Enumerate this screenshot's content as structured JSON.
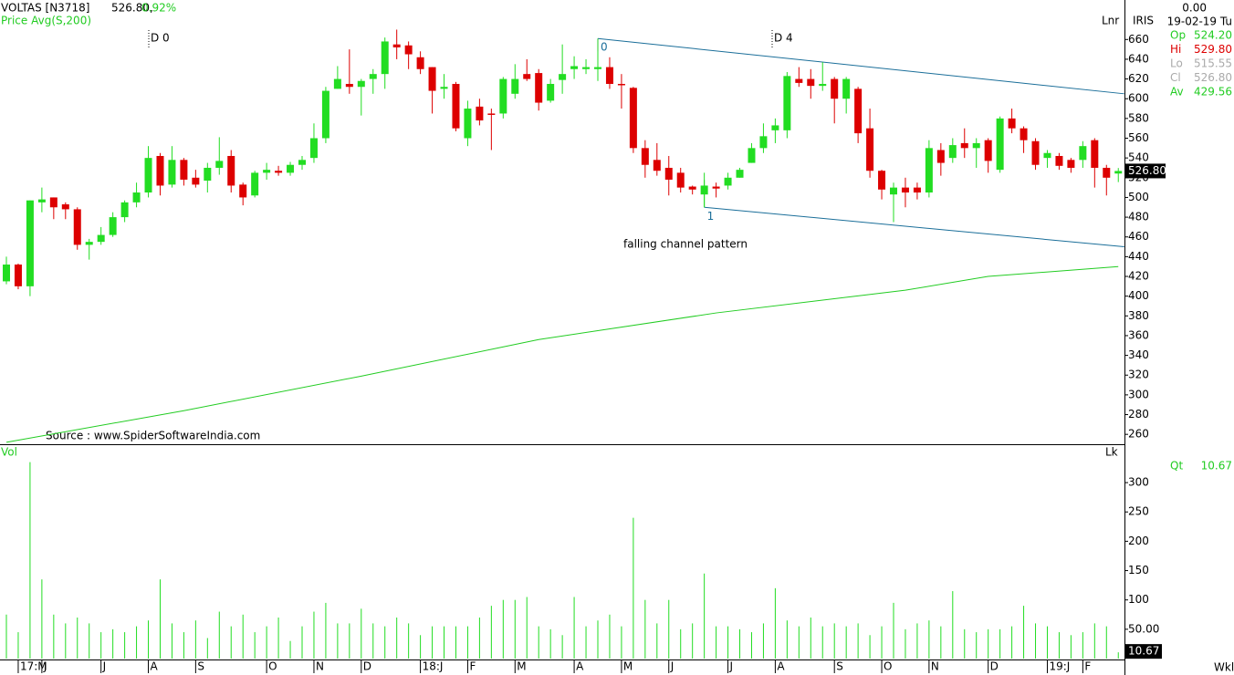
{
  "header": {
    "symbol": "VOLTAS [N3718]",
    "last": "526.80,",
    "change": "0.92%",
    "indicator": "Price  Avg(S,200)",
    "d0": "D 0",
    "d4": "D 4",
    "scale": "Lnr",
    "brand": "IRIS",
    "vol_title": "Vol",
    "vol_unit": "Lk",
    "period": "Wkl",
    "source": "Source : www.SpiderSoftwareIndia.com",
    "annotation": "falling channel pattern"
  },
  "info": {
    "top": "0.00",
    "date": "19-02-19 Tu",
    "rows": [
      {
        "label": "Op",
        "value": "524.20"
      },
      {
        "label": "Hi",
        "value": "529.80"
      },
      {
        "label": "Lo",
        "value": "515.55"
      },
      {
        "label": "Cl",
        "value": "526.80"
      },
      {
        "label": "Av",
        "value": "429.56"
      }
    ],
    "qt_label": "Qt",
    "qt_value": "10.67"
  },
  "price_box": "526.80",
  "chart_data": [
    {
      "type": "candlestick",
      "ylim": [
        250,
        700
      ],
      "yticks": [
        260,
        280,
        300,
        320,
        340,
        360,
        380,
        400,
        420,
        440,
        460,
        480,
        500,
        520,
        540,
        560,
        580,
        600,
        620,
        640,
        660
      ],
      "xticks": [
        {
          "value": 1,
          "label": "17:M"
        },
        {
          "value": 3,
          "label": "J"
        },
        {
          "value": 8,
          "label": "J"
        },
        {
          "value": 12,
          "label": "A"
        },
        {
          "value": 16,
          "label": "S"
        },
        {
          "value": 22,
          "label": "O"
        },
        {
          "value": 26,
          "label": "N"
        },
        {
          "value": 30,
          "label": "D"
        },
        {
          "value": 35,
          "label": "18:J"
        },
        {
          "value": 39,
          "label": "F"
        },
        {
          "value": 43,
          "label": "M"
        },
        {
          "value": 48,
          "label": "A"
        },
        {
          "value": 52,
          "label": "M"
        },
        {
          "value": 56,
          "label": "J"
        },
        {
          "value": 61,
          "label": "J"
        },
        {
          "value": 65,
          "label": "A"
        },
        {
          "value": 70,
          "label": "S"
        },
        {
          "value": 74,
          "label": "O"
        },
        {
          "value": 78,
          "label": "N"
        },
        {
          "value": 83,
          "label": "D"
        },
        {
          "value": 88,
          "label": "19:J"
        },
        {
          "value": 91,
          "label": "F"
        }
      ],
      "up_color": "#22dd22",
      "down_color": "#dd0000",
      "open": [
        415,
        432,
        410,
        495,
        500,
        493,
        488,
        452,
        455,
        462,
        480,
        495,
        505,
        542,
        513,
        538,
        520,
        517,
        530,
        542,
        513,
        502,
        525,
        527,
        525,
        533,
        540,
        560,
        610,
        615,
        612,
        620,
        625,
        655,
        654,
        642,
        632,
        610,
        615,
        560,
        592,
        585,
        585,
        605,
        625,
        626,
        598,
        619,
        630,
        630,
        630,
        632,
        615,
        611,
        550,
        538,
        530,
        525,
        511,
        503,
        511,
        512,
        520,
        535,
        550,
        568,
        568,
        620,
        620,
        613,
        620,
        600,
        610,
        570,
        527,
        503,
        510,
        510,
        505,
        548,
        540,
        555,
        550,
        558,
        528,
        580,
        570,
        557,
        540,
        542,
        538,
        538,
        558,
        530,
        524.2
      ],
      "high": [
        440,
        433,
        497,
        510,
        500,
        495,
        490,
        458,
        470,
        485,
        497,
        515,
        552,
        545,
        552,
        540,
        528,
        535,
        561,
        548,
        515,
        527,
        535,
        532,
        536,
        542,
        575,
        612,
        633,
        650,
        620,
        630,
        662,
        670,
        658,
        648,
        632,
        625,
        617,
        598,
        600,
        590,
        622,
        635,
        640,
        630,
        620,
        655,
        643,
        640,
        648,
        642,
        625,
        612,
        558,
        555,
        542,
        530,
        512,
        525,
        515,
        525,
        530,
        555,
        575,
        580,
        627,
        632,
        630,
        637,
        622,
        622,
        612,
        590,
        528,
        515,
        520,
        515,
        558,
        555,
        560,
        570,
        560,
        560,
        582,
        590,
        572,
        560,
        548,
        545,
        540,
        557,
        560,
        533,
        529.8
      ],
      "low": [
        412,
        407,
        400,
        485,
        478,
        478,
        447,
        437,
        452,
        460,
        475,
        490,
        500,
        502,
        510,
        512,
        510,
        505,
        523,
        505,
        492,
        500,
        518,
        522,
        522,
        528,
        535,
        555,
        610,
        605,
        583,
        605,
        610,
        640,
        630,
        625,
        585,
        600,
        567,
        552,
        573,
        548,
        580,
        600,
        618,
        588,
        596,
        605,
        620,
        625,
        618,
        610,
        590,
        545,
        520,
        522,
        502,
        505,
        503,
        490,
        500,
        508,
        520,
        535,
        545,
        555,
        560,
        612,
        600,
        608,
        575,
        585,
        555,
        520,
        498,
        475,
        490,
        498,
        500,
        522,
        535,
        540,
        530,
        525,
        525,
        565,
        545,
        528,
        530,
        528,
        525,
        530,
        510,
        502,
        515.55
      ],
      "close": [
        432,
        410,
        497,
        498,
        490,
        488,
        452,
        455,
        462,
        480,
        495,
        505,
        540,
        512,
        538,
        518,
        513,
        530,
        537,
        512,
        500,
        525,
        528,
        525,
        533,
        538,
        560,
        608,
        620,
        612,
        618,
        625,
        658,
        652,
        645,
        630,
        608,
        612,
        570,
        590,
        578,
        584,
        620,
        620,
        620,
        596,
        615,
        625,
        633,
        632,
        632,
        615,
        614,
        550,
        533,
        527,
        518,
        510,
        508,
        512,
        509,
        520,
        528,
        550,
        562,
        573,
        623,
        616,
        613,
        615,
        600,
        620,
        565,
        527,
        508,
        510,
        505,
        505,
        550,
        535,
        553,
        550,
        555,
        537,
        580,
        570,
        558,
        533,
        545,
        532,
        530,
        552,
        530,
        520,
        526.8
      ],
      "ma": {
        "color": "#22cc22",
        "x": [
          0,
          15,
          30,
          45,
          60,
          76,
          83,
          94
        ],
        "values": [
          252,
          284,
          319,
          356,
          383,
          406,
          420,
          430
        ]
      },
      "channel": {
        "color": "#1a6e99",
        "upper": {
          "x": [
            50,
            94.5
          ],
          "values": [
            661,
            605
          ],
          "label": "0"
        },
        "lower": {
          "x": [
            59,
            94.5
          ],
          "values": [
            490,
            450
          ],
          "label": "1"
        }
      }
    },
    {
      "type": "volume",
      "ylim": [
        0,
        360
      ],
      "color": "#22dd22",
      "yticks": [
        {
          "value": 50,
          "label": "50.00"
        },
        100,
        150,
        200,
        250,
        300
      ],
      "values": [
        75,
        45,
        335,
        135,
        75,
        60,
        70,
        60,
        45,
        50,
        45,
        55,
        65,
        135,
        60,
        45,
        65,
        35,
        80,
        55,
        75,
        45,
        55,
        70,
        30,
        55,
        80,
        95,
        60,
        60,
        85,
        60,
        55,
        70,
        60,
        40,
        55,
        55,
        55,
        55,
        70,
        90,
        100,
        100,
        105,
        55,
        50,
        40,
        105,
        55,
        65,
        75,
        55,
        240,
        100,
        60,
        100,
        50,
        60,
        145,
        55,
        55,
        50,
        45,
        60,
        120,
        65,
        55,
        70,
        55,
        60,
        55,
        60,
        40,
        55,
        95,
        50,
        60,
        65,
        55,
        115,
        50,
        45,
        50,
        50,
        55,
        90,
        60,
        55,
        45,
        40,
        45,
        60,
        55,
        10.67
      ]
    }
  ]
}
